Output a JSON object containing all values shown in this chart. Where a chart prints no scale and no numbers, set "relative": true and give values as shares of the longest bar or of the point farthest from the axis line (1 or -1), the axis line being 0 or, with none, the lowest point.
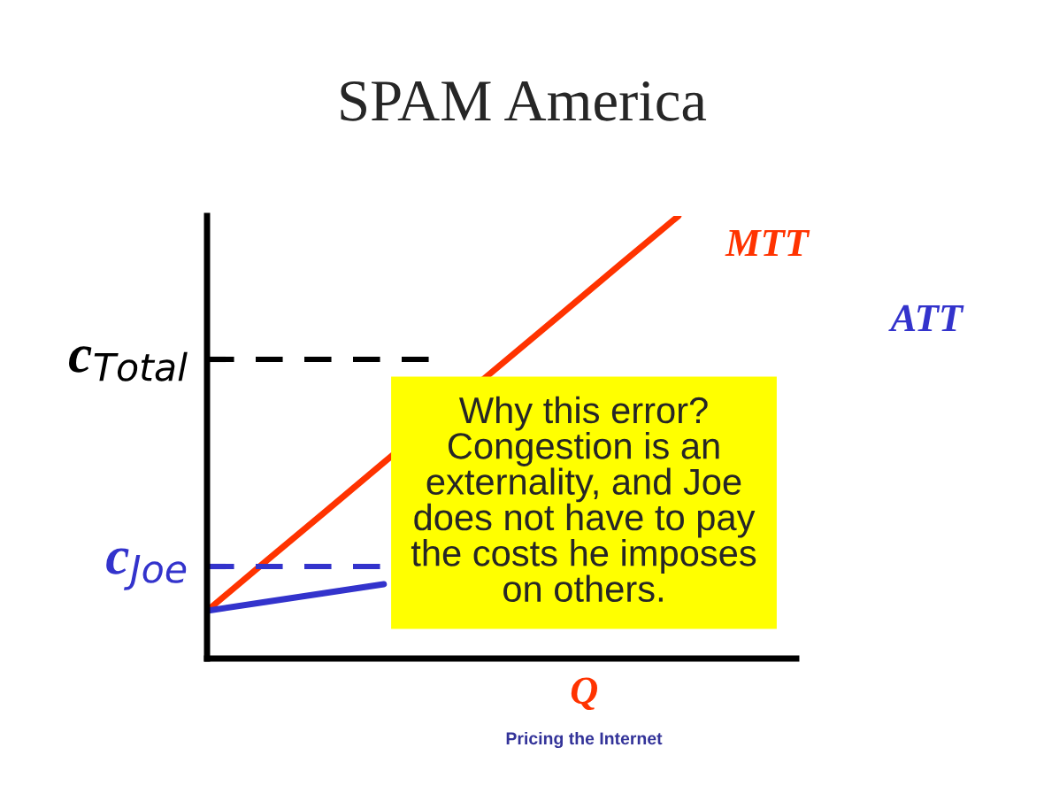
{
  "chart_data": {
    "type": "line",
    "title": "SPAM America",
    "xlabel": "Q",
    "relative": true,
    "categories": [
      null,
      null,
      null,
      null,
      null,
      null,
      null,
      null,
      null
    ],
    "series": [
      {
        "name": "MTT",
        "color": "#ff3300",
        "values": [
          0.108,
          0.22,
          0.331,
          0.443,
          null,
          null,
          0.777,
          0.889,
          1.0
        ]
      },
      {
        "name": "ATT",
        "color": "#3333cc",
        "values": [
          0.108,
          0.128,
          0.148,
          0.168,
          null,
          null,
          null,
          null,
          null
        ]
      }
    ],
    "ref_lines": [
      {
        "axis": "y",
        "value": 0.676,
        "label": "c$_{Total}$",
        "color": "#000000",
        "line_style": "dashed"
      },
      {
        "axis": "y",
        "value": 0.208,
        "label": "c$_{Joe}$",
        "color": "#3333cc",
        "line_style": "dashed"
      }
    ],
    "annotations": [
      "Why this error?\nCongestion is an\nexternality, and Joe\ndoes not have to pay\nthe costs he imposes\non others.",
      "Pricing the Internet"
    ],
    "legend": false
  }
}
